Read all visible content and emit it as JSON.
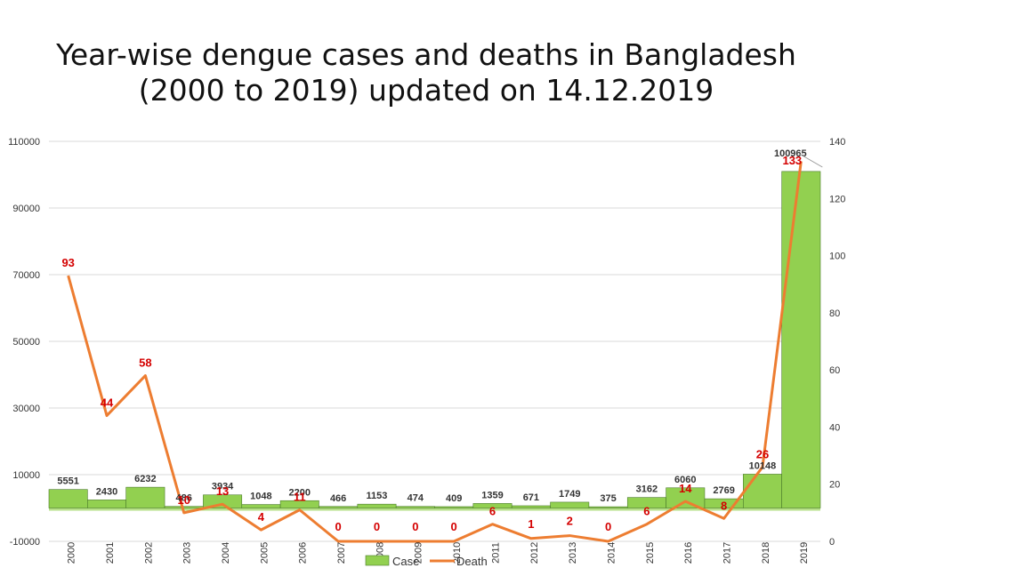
{
  "chart_data": {
    "type": "bar",
    "title_line1": "Year-wise dengue cases and deaths in Bangladesh",
    "title_line2": "(2000 to 2019) updated on 14.12.2019",
    "categories": [
      "2000",
      "2001",
      "2002",
      "2003",
      "2004",
      "2005",
      "2006",
      "2007",
      "2008",
      "2009",
      "2010",
      "2011",
      "2012",
      "2013",
      "2014",
      "2015",
      "2016",
      "2017",
      "2018",
      "2019"
    ],
    "series": [
      {
        "name": "Case",
        "type": "bar",
        "axis": "left",
        "values": [
          5551,
          2430,
          6232,
          486,
          3934,
          1048,
          2200,
          466,
          1153,
          474,
          409,
          1359,
          671,
          1749,
          375,
          3162,
          6060,
          2769,
          10148,
          100965
        ],
        "labels": [
          "5551",
          "2430",
          "6232",
          "486",
          "3934",
          "1048",
          "2200",
          "466",
          "1153",
          "474",
          "409",
          "1359",
          "671",
          "1749",
          "375",
          "3162",
          "6060",
          "2769",
          "10148",
          "100965"
        ]
      },
      {
        "name": "Death",
        "type": "line",
        "axis": "right",
        "values": [
          93,
          44,
          58,
          10,
          13,
          4,
          11,
          0,
          0,
          0,
          0,
          6,
          1,
          2,
          0,
          6,
          14,
          8,
          26,
          133
        ],
        "labels": [
          "93",
          "44",
          "58",
          "10",
          "13",
          "4",
          "11",
          "0",
          "0",
          "0",
          "0",
          "6",
          "1",
          "2",
          "0",
          "6",
          "14",
          "8",
          "26",
          "133"
        ]
      }
    ],
    "y_left": {
      "ylim": [
        -10000,
        110000
      ],
      "ticks": [
        "110000",
        "90000",
        "70000",
        "50000",
        "30000",
        "10000",
        "-10000"
      ]
    },
    "y_right": {
      "ylim": [
        0,
        140
      ],
      "ticks": [
        "140",
        "120",
        "100",
        "80",
        "60",
        "40",
        "20",
        "0"
      ]
    },
    "grid": true,
    "legend": "bottom-center",
    "colors": {
      "bar": "#92d050",
      "bar_edge": "#4a7a2a",
      "line": "#ed7d31",
      "death_label": "#d40000",
      "grid": "#d9d9d9"
    }
  }
}
